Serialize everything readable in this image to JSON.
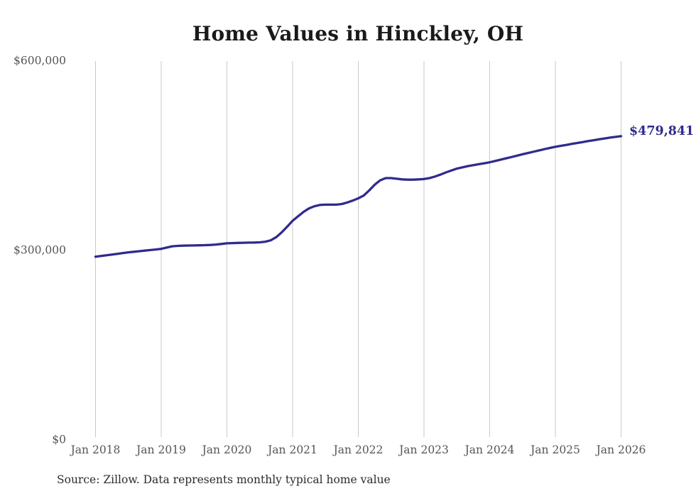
{
  "chart_data": {
    "type": "line",
    "title": "Home Values in Hinckley, OH",
    "xlabel": "",
    "ylabel": "",
    "ylim": [
      0,
      600000
    ],
    "grid": "vertical-only",
    "x_tick_labels": [
      "Jan 2018",
      "Jan 2019",
      "Jan 2020",
      "Jan 2021",
      "Jan 2022",
      "Jan 2023",
      "Jan 2024",
      "Jan 2025",
      "Jan 2026"
    ],
    "y_ticks": [
      {
        "label": "$0",
        "value": 0
      },
      {
        "label": "$300,000",
        "value": 300000
      },
      {
        "label": "$600,000",
        "value": 600000
      }
    ],
    "end_label": "$479,841",
    "end_value": 479841,
    "source": "Source: Zillow. Data represents monthly typical home value",
    "series": [
      {
        "name": "Typical home value",
        "start_month": "Jan 2018",
        "end_month": "Jan 2026",
        "frequency": "monthly",
        "values": [
          289000,
          290100,
          291200,
          292400,
          293600,
          294800,
          295900,
          296900,
          297800,
          298600,
          299500,
          300500,
          301500,
          303500,
          305500,
          306200,
          306500,
          306700,
          306900,
          307100,
          307300,
          307600,
          308300,
          309200,
          310200,
          310600,
          310900,
          311100,
          311300,
          311500,
          311800,
          312800,
          315000,
          320000,
          327500,
          336500,
          346000,
          353000,
          360000,
          365500,
          369000,
          371000,
          371500,
          371500,
          371500,
          372500,
          375000,
          378000,
          381500,
          386000,
          394000,
          403000,
          410000,
          413500,
          413500,
          412500,
          411500,
          411000,
          411000,
          411500,
          412000,
          413500,
          416000,
          419000,
          422500,
          425500,
          428500,
          430500,
          432500,
          434000,
          435500,
          437000,
          438500,
          440600,
          442700,
          444800,
          446900,
          449000,
          451200,
          453300,
          455300,
          457300,
          459300,
          461200,
          463000,
          464600,
          466100,
          467600,
          469100,
          470600,
          472100,
          473500,
          474900,
          476300,
          477600,
          478800,
          479841
        ]
      }
    ],
    "colors": {
      "line": "#302b8d",
      "grid": "#c9c9c9",
      "axis_text": "#555555",
      "title_text": "#1a1a1a",
      "source_text": "#2b2b2b",
      "background": "#ffffff"
    }
  }
}
